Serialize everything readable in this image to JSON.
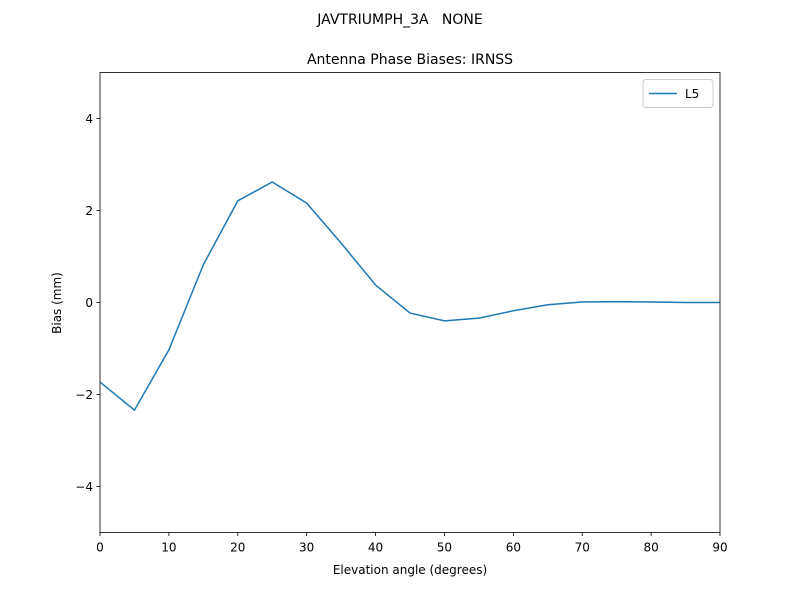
{
  "chart_data": {
    "type": "line",
    "suptitle": "JAVTRIUMPH_3A   NONE",
    "title": "Antenna Phase Biases: IRNSS",
    "x_label": "Elevation angle (degrees)",
    "y_label": "Bias (mm)",
    "x": [
      0,
      5,
      10,
      15,
      20,
      25,
      30,
      35,
      40,
      45,
      50,
      55,
      60,
      65,
      70,
      75,
      80,
      85,
      90
    ],
    "series": [
      {
        "name": "L5",
        "color": "#1f77b4",
        "values": [
          -1.73,
          -2.34,
          -1.03,
          0.82,
          2.21,
          2.62,
          2.16,
          1.29,
          0.38,
          -0.23,
          -0.4,
          -0.34,
          -0.18,
          -0.05,
          0.01,
          0.02,
          0.01,
          0.0,
          0.0
        ]
      }
    ],
    "xlim": [
      0,
      90
    ],
    "xticks": [
      0,
      10,
      20,
      30,
      40,
      50,
      60,
      70,
      80,
      90
    ],
    "ylim": [
      -5,
      5
    ],
    "yticks": [
      {
        "value": -4,
        "label": "−4"
      },
      {
        "value": -2,
        "label": "−2"
      },
      0,
      2,
      4
    ],
    "grid": false,
    "legend": "upper right"
  }
}
